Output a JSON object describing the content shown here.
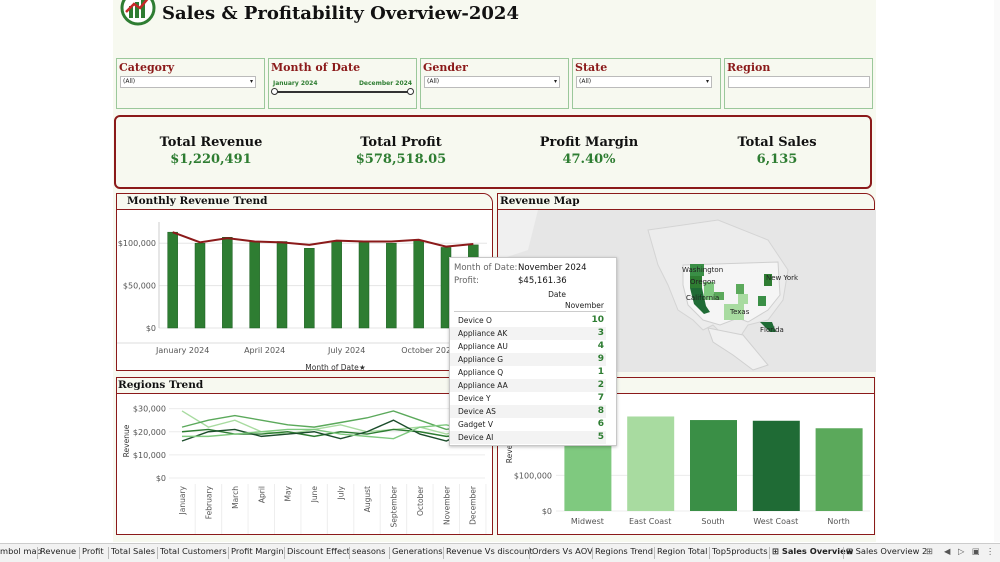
{
  "title": "Sales & Profitability Overview-2024",
  "filters": {
    "category": {
      "label": "Category",
      "value": "(All)"
    },
    "month": {
      "label": "Month of Date",
      "start": "January 2024",
      "end": "December 2024"
    },
    "gender": {
      "label": "Gender",
      "value": "(All)"
    },
    "state": {
      "label": "State",
      "value": "(All)"
    },
    "region": {
      "label": "Region",
      "value": ""
    }
  },
  "kpis": [
    {
      "label": "Total Revenue",
      "value": "$1,220,491"
    },
    {
      "label": "Total Profit",
      "value": "$578,518.05"
    },
    {
      "label": "Profit Margin",
      "value": "47.40%"
    },
    {
      "label": "Total Sales",
      "value": "6,135"
    }
  ],
  "panels": {
    "monthly": "Monthly Revenue Trend",
    "map": "Revenue Map",
    "regions": "Regions Trend"
  },
  "map_labels": [
    "Washington",
    "Oregon",
    "California",
    "Texas",
    "Florida",
    "New York"
  ],
  "colors": {
    "dark_red": "#8b1a1a",
    "green": "#2e7d32",
    "bar_green": "#2e7d32",
    "line_red": "#8b1a1a"
  },
  "chart_data": [
    {
      "type": "bar",
      "ylabel": "",
      "xlabel": "Month of Date",
      "y_ticks": [
        "$0",
        "$50,000",
        "$100,000"
      ],
      "x_ticks": [
        "January 2024",
        "April 2024",
        "July 2024",
        "October 2024"
      ],
      "categories": [
        "Jan",
        "Feb",
        "Mar",
        "Apr",
        "May",
        "Jun",
        "Jul",
        "Aug",
        "Sep",
        "Oct",
        "Nov",
        "Dec"
      ],
      "values": [
        113000,
        100000,
        107000,
        102000,
        102000,
        94000,
        102000,
        102000,
        100000,
        103000,
        95000,
        98000
      ],
      "line_values": [
        113000,
        101000,
        106000,
        102000,
        101000,
        98000,
        103000,
        102000,
        102000,
        104000,
        96000,
        99000
      ],
      "ylim": [
        0,
        125000
      ]
    },
    {
      "type": "line",
      "ylabel": "Revenue",
      "y_ticks": [
        "$0",
        "$10,000",
        "$20,000",
        "$30,000"
      ],
      "categories": [
        "January",
        "February",
        "March",
        "April",
        "May",
        "June",
        "July",
        "August",
        "September",
        "October",
        "November",
        "December"
      ],
      "series": [
        {
          "values": [
            29000,
            22000,
            25000,
            20000,
            19000,
            21000,
            23000,
            20000,
            21000,
            22000,
            19000,
            22000
          ]
        },
        {
          "values": [
            22000,
            25000,
            27000,
            25000,
            23000,
            22000,
            24000,
            26000,
            29000,
            25000,
            21000,
            23000
          ]
        },
        {
          "values": [
            20000,
            21000,
            19000,
            19000,
            20000,
            18000,
            20000,
            19000,
            21000,
            20000,
            18000,
            19000
          ]
        },
        {
          "values": [
            16000,
            20000,
            21000,
            18000,
            19000,
            20000,
            17000,
            20000,
            25000,
            19000,
            16000,
            21000
          ]
        },
        {
          "values": [
            18000,
            18000,
            19000,
            20000,
            21000,
            21000,
            19000,
            18000,
            17000,
            22000,
            23000,
            20000
          ]
        }
      ],
      "ylim": [
        0,
        32000
      ]
    },
    {
      "type": "bar",
      "ylabel": "Reve",
      "y_ticks": [
        "$0",
        "$100,000"
      ],
      "categories": [
        "Midwest",
        "East Coast",
        "South",
        "West Coast",
        "North"
      ],
      "values": [
        225000,
        265000,
        255000,
        253000,
        232000
      ],
      "colors": [
        "#7fc97f",
        "#a8dba0",
        "#3a8f46",
        "#1f6b35",
        "#5ba95b"
      ],
      "ylim": [
        0,
        300000
      ]
    }
  ],
  "tooltip": {
    "month_label": "Month of Date:",
    "month_value": "November 2024",
    "profit_label": "Profit:",
    "profit_value": "$45,161.36",
    "col_header1": "Date",
    "col_header2": "November",
    "rows": [
      {
        "name": "Device O",
        "value": "10"
      },
      {
        "name": "Appliance AK",
        "value": "3"
      },
      {
        "name": "Appliance AU",
        "value": "4"
      },
      {
        "name": "Appliance G",
        "value": "9"
      },
      {
        "name": "Appliance Q",
        "value": "1"
      },
      {
        "name": "Appliance AA",
        "value": "2"
      },
      {
        "name": "Device Y",
        "value": "7"
      },
      {
        "name": "Device AS",
        "value": "8"
      },
      {
        "name": "Gadget V",
        "value": "6"
      },
      {
        "name": "Device AI",
        "value": "5"
      }
    ]
  },
  "tabs": [
    "mbol map",
    "Revenue",
    "Profit",
    "Total Sales",
    "Total Customers",
    "Profit Margin",
    "Discount Effect",
    "seasons",
    "Generations",
    "Revenue Vs discount",
    "Orders Vs AOV",
    "Regions Trend",
    "Region Total",
    "Top5products",
    "Sales Overview",
    "Sales Overview 2"
  ],
  "active_tab": "Sales Overview"
}
